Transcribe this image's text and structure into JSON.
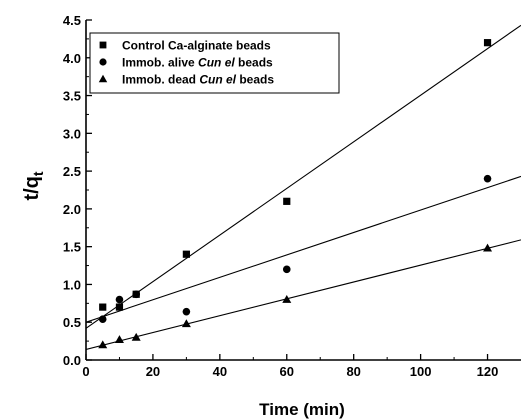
{
  "chart_data": {
    "type": "scatter",
    "xlabel": "Time (min)",
    "ylabel": {
      "main": "t/q",
      "sub": "t"
    },
    "xlim": [
      0,
      130
    ],
    "ylim": [
      0,
      4.5
    ],
    "xticks": [
      "0",
      "20",
      "40",
      "60",
      "80",
      "100",
      "120"
    ],
    "yticks": [
      "0.0",
      "0.5",
      "1.0",
      "1.5",
      "2.0",
      "2.5",
      "3.0",
      "3.5",
      "4.0",
      "4.5"
    ],
    "grid": false,
    "legend_position": "top-left",
    "series": [
      {
        "name_parts": [
          {
            "text": "Control Ca-alginate beads",
            "italic": false
          }
        ],
        "marker": "square",
        "x": [
          5,
          10,
          15,
          30,
          60,
          120
        ],
        "y": [
          0.7,
          0.7,
          0.87,
          1.4,
          2.1,
          4.2
        ],
        "fit": {
          "x": [
            0,
            130
          ],
          "y": [
            0.42,
            4.43
          ]
        }
      },
      {
        "name_parts": [
          {
            "text": "Immob. alive ",
            "italic": false
          },
          {
            "text": "Cun el",
            "italic": true
          },
          {
            "text": " beads",
            "italic": false
          }
        ],
        "marker": "circle",
        "x": [
          5,
          10,
          15,
          30,
          60,
          120
        ],
        "y": [
          0.54,
          0.8,
          0.87,
          0.64,
          1.2,
          2.4
        ],
        "fit": {
          "x": [
            0,
            130
          ],
          "y": [
            0.5,
            2.43
          ]
        }
      },
      {
        "name_parts": [
          {
            "text": "Immob. dead ",
            "italic": false
          },
          {
            "text": "Cun el",
            "italic": true
          },
          {
            "text": " beads",
            "italic": false
          }
        ],
        "marker": "triangle",
        "x": [
          5,
          10,
          15,
          30,
          60,
          120
        ],
        "y": [
          0.2,
          0.27,
          0.3,
          0.48,
          0.8,
          1.48
        ],
        "fit": {
          "x": [
            0,
            130
          ],
          "y": [
            0.14,
            1.59
          ]
        }
      }
    ]
  }
}
